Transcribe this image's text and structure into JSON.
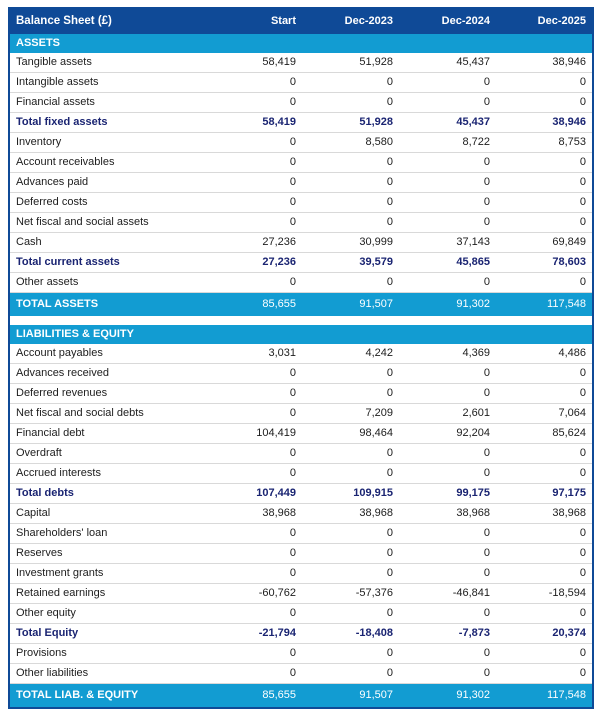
{
  "table": {
    "title": "Balance Sheet (£)",
    "columns": [
      "Start",
      "Dec-2023",
      "Dec-2024",
      "Dec-2025"
    ],
    "colors": {
      "header_bg": "#0f4a97",
      "section_bg": "#129cd2",
      "total_bg": "#129cd2",
      "subtotal_text": "#1a2472",
      "body_text": "#1d1d1d",
      "row_border": "#d9d9d9"
    },
    "rows": [
      {
        "style": "section",
        "label": "ASSETS"
      },
      {
        "style": "normal",
        "label": "Tangible assets",
        "values": [
          "58,419",
          "51,928",
          "45,437",
          "38,946"
        ]
      },
      {
        "style": "normal",
        "label": "Intangible assets",
        "values": [
          "0",
          "0",
          "0",
          "0"
        ]
      },
      {
        "style": "normal",
        "label": "Financial assets",
        "values": [
          "0",
          "0",
          "0",
          "0"
        ]
      },
      {
        "style": "subtotal",
        "label": "Total fixed assets",
        "values": [
          "58,419",
          "51,928",
          "45,437",
          "38,946"
        ]
      },
      {
        "style": "normal",
        "label": "Inventory",
        "values": [
          "0",
          "8,580",
          "8,722",
          "8,753"
        ]
      },
      {
        "style": "normal",
        "label": "Account receivables",
        "values": [
          "0",
          "0",
          "0",
          "0"
        ]
      },
      {
        "style": "normal",
        "label": "Advances paid",
        "values": [
          "0",
          "0",
          "0",
          "0"
        ]
      },
      {
        "style": "normal",
        "label": "Deferred costs",
        "values": [
          "0",
          "0",
          "0",
          "0"
        ]
      },
      {
        "style": "normal",
        "label": "Net fiscal and social assets",
        "values": [
          "0",
          "0",
          "0",
          "0"
        ]
      },
      {
        "style": "normal",
        "label": "Cash",
        "values": [
          "27,236",
          "30,999",
          "37,143",
          "69,849"
        ]
      },
      {
        "style": "subtotal",
        "label": "Total current assets",
        "values": [
          "27,236",
          "39,579",
          "45,865",
          "78,603"
        ]
      },
      {
        "style": "normal",
        "label": "Other assets",
        "values": [
          "0",
          "0",
          "0",
          "0"
        ]
      },
      {
        "style": "grandtotal",
        "label": "TOTAL ASSETS",
        "values": [
          "85,655",
          "91,507",
          "91,302",
          "117,548"
        ]
      },
      {
        "style": "gap"
      },
      {
        "style": "section",
        "label": "LIABILITIES & EQUITY"
      },
      {
        "style": "normal",
        "label": "Account payables",
        "values": [
          "3,031",
          "4,242",
          "4,369",
          "4,486"
        ]
      },
      {
        "style": "normal",
        "label": "Advances received",
        "values": [
          "0",
          "0",
          "0",
          "0"
        ]
      },
      {
        "style": "normal",
        "label": "Deferred revenues",
        "values": [
          "0",
          "0",
          "0",
          "0"
        ]
      },
      {
        "style": "normal",
        "label": "Net fiscal and social debts",
        "values": [
          "0",
          "7,209",
          "2,601",
          "7,064"
        ]
      },
      {
        "style": "normal",
        "label": "Financial debt",
        "values": [
          "104,419",
          "98,464",
          "92,204",
          "85,624"
        ]
      },
      {
        "style": "normal",
        "label": "Overdraft",
        "values": [
          "0",
          "0",
          "0",
          "0"
        ]
      },
      {
        "style": "normal",
        "label": "Accrued interests",
        "values": [
          "0",
          "0",
          "0",
          "0"
        ]
      },
      {
        "style": "subtotal",
        "label": "Total debts",
        "values": [
          "107,449",
          "109,915",
          "99,175",
          "97,175"
        ]
      },
      {
        "style": "normal",
        "label": "Capital",
        "values": [
          "38,968",
          "38,968",
          "38,968",
          "38,968"
        ]
      },
      {
        "style": "normal",
        "label": "Shareholders' loan",
        "values": [
          "0",
          "0",
          "0",
          "0"
        ]
      },
      {
        "style": "normal",
        "label": "Reserves",
        "values": [
          "0",
          "0",
          "0",
          "0"
        ]
      },
      {
        "style": "normal",
        "label": "Investment grants",
        "values": [
          "0",
          "0",
          "0",
          "0"
        ]
      },
      {
        "style": "normal",
        "label": "Retained earnings",
        "values": [
          "-60,762",
          "-57,376",
          "-46,841",
          "-18,594"
        ]
      },
      {
        "style": "normal",
        "label": "Other equity",
        "values": [
          "0",
          "0",
          "0",
          "0"
        ]
      },
      {
        "style": "subtotal",
        "label": "Total Equity",
        "values": [
          "-21,794",
          "-18,408",
          "-7,873",
          "20,374"
        ]
      },
      {
        "style": "normal",
        "label": "Provisions",
        "values": [
          "0",
          "0",
          "0",
          "0"
        ]
      },
      {
        "style": "normal",
        "label": "Other liabilities",
        "values": [
          "0",
          "0",
          "0",
          "0"
        ]
      },
      {
        "style": "grandtotal",
        "label": "TOTAL LIAB. & EQUITY",
        "values": [
          "85,655",
          "91,507",
          "91,302",
          "117,548"
        ]
      }
    ]
  },
  "chart_data": {
    "type": "table",
    "title": "Balance Sheet (£)",
    "columns": [
      "Start",
      "Dec-2023",
      "Dec-2024",
      "Dec-2025"
    ],
    "sections": [
      {
        "name": "ASSETS",
        "rows": [
          {
            "label": "Tangible assets",
            "values": [
              58419,
              51928,
              45437,
              38946
            ]
          },
          {
            "label": "Intangible assets",
            "values": [
              0,
              0,
              0,
              0
            ]
          },
          {
            "label": "Financial assets",
            "values": [
              0,
              0,
              0,
              0
            ]
          },
          {
            "label": "Total fixed assets",
            "values": [
              58419,
              51928,
              45437,
              38946
            ],
            "subtotal": true
          },
          {
            "label": "Inventory",
            "values": [
              0,
              8580,
              8722,
              8753
            ]
          },
          {
            "label": "Account receivables",
            "values": [
              0,
              0,
              0,
              0
            ]
          },
          {
            "label": "Advances paid",
            "values": [
              0,
              0,
              0,
              0
            ]
          },
          {
            "label": "Deferred costs",
            "values": [
              0,
              0,
              0,
              0
            ]
          },
          {
            "label": "Net fiscal and social assets",
            "values": [
              0,
              0,
              0,
              0
            ]
          },
          {
            "label": "Cash",
            "values": [
              27236,
              30999,
              37143,
              69849
            ]
          },
          {
            "label": "Total current assets",
            "values": [
              27236,
              39579,
              45865,
              78603
            ],
            "subtotal": true
          },
          {
            "label": "Other assets",
            "values": [
              0,
              0,
              0,
              0
            ]
          },
          {
            "label": "TOTAL ASSETS",
            "values": [
              85655,
              91507,
              91302,
              117548
            ],
            "total": true
          }
        ]
      },
      {
        "name": "LIABILITIES & EQUITY",
        "rows": [
          {
            "label": "Account payables",
            "values": [
              3031,
              4242,
              4369,
              4486
            ]
          },
          {
            "label": "Advances received",
            "values": [
              0,
              0,
              0,
              0
            ]
          },
          {
            "label": "Deferred revenues",
            "values": [
              0,
              0,
              0,
              0
            ]
          },
          {
            "label": "Net fiscal and social debts",
            "values": [
              0,
              7209,
              2601,
              7064
            ]
          },
          {
            "label": "Financial debt",
            "values": [
              104419,
              98464,
              92204,
              85624
            ]
          },
          {
            "label": "Overdraft",
            "values": [
              0,
              0,
              0,
              0
            ]
          },
          {
            "label": "Accrued interests",
            "values": [
              0,
              0,
              0,
              0
            ]
          },
          {
            "label": "Total debts",
            "values": [
              107449,
              109915,
              99175,
              97175
            ],
            "subtotal": true
          },
          {
            "label": "Capital",
            "values": [
              38968,
              38968,
              38968,
              38968
            ]
          },
          {
            "label": "Shareholders' loan",
            "values": [
              0,
              0,
              0,
              0
            ]
          },
          {
            "label": "Reserves",
            "values": [
              0,
              0,
              0,
              0
            ]
          },
          {
            "label": "Investment grants",
            "values": [
              0,
              0,
              0,
              0
            ]
          },
          {
            "label": "Retained earnings",
            "values": [
              -60762,
              -57376,
              -46841,
              -18594
            ]
          },
          {
            "label": "Other equity",
            "values": [
              0,
              0,
              0,
              0
            ]
          },
          {
            "label": "Total Equity",
            "values": [
              -21794,
              -18408,
              -7873,
              20374
            ],
            "subtotal": true
          },
          {
            "label": "Provisions",
            "values": [
              0,
              0,
              0,
              0
            ]
          },
          {
            "label": "Other liabilities",
            "values": [
              0,
              0,
              0,
              0
            ]
          },
          {
            "label": "TOTAL LIAB. & EQUITY",
            "values": [
              85655,
              91507,
              91302,
              117548
            ],
            "total": true
          }
        ]
      }
    ]
  }
}
